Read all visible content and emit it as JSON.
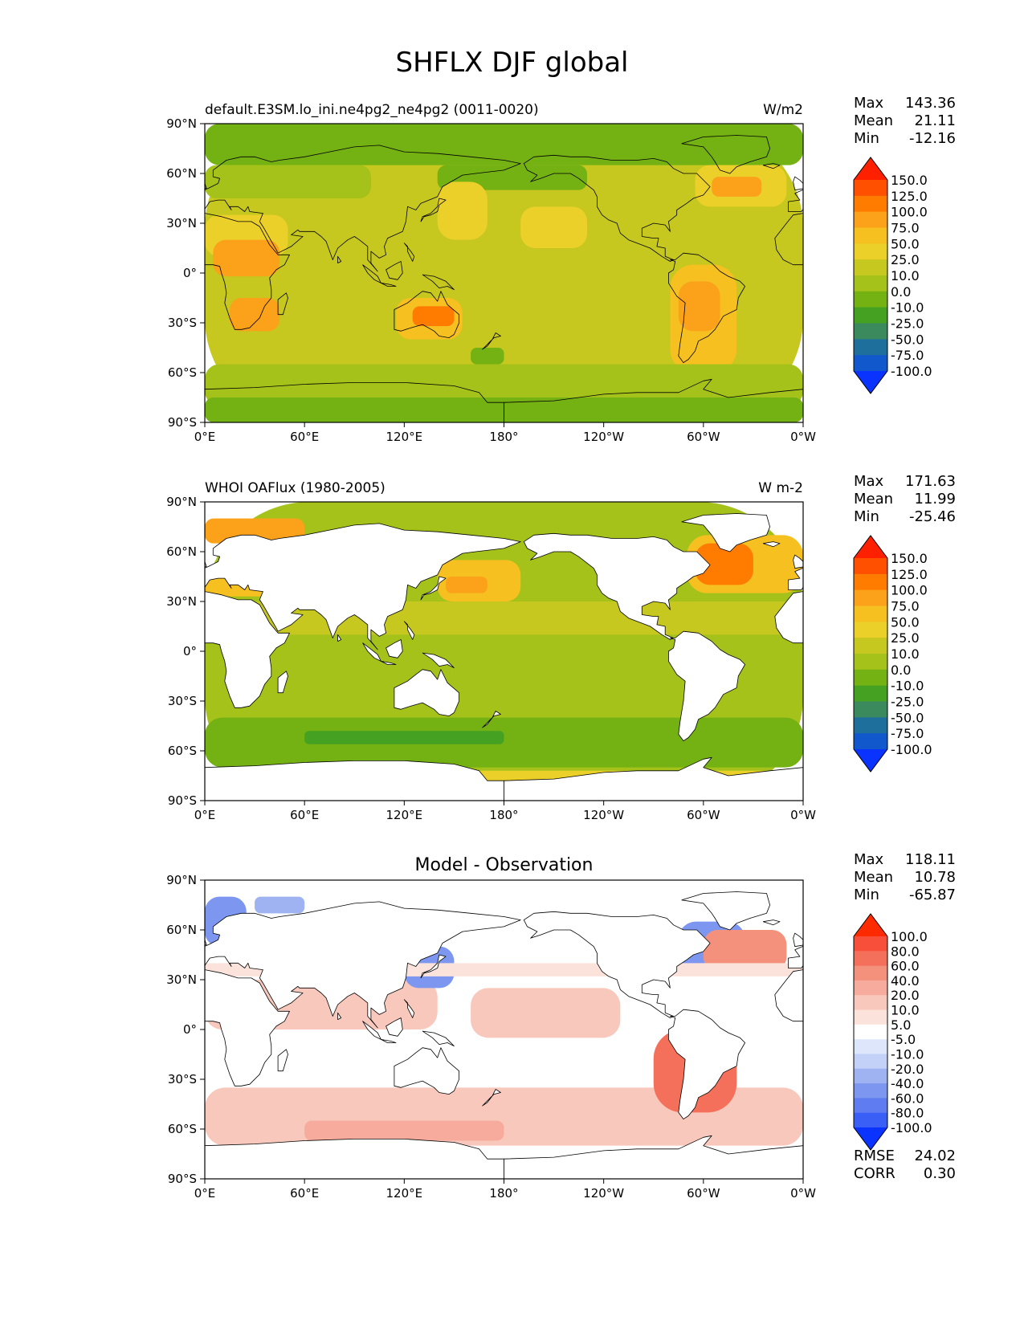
{
  "title": "SHFLX DJF global",
  "chart_data": [
    {
      "type": "heatmap",
      "subtitle_left": "default.E3SM.lo_ini.ne4pg2_ne4pg2 (0011-0020)",
      "subtitle_center": "",
      "units": "W/m2",
      "stats": [
        {
          "label": "Max",
          "value": "143.36"
        },
        {
          "label": "Mean",
          "value": "21.11"
        },
        {
          "label": "Min",
          "value": "-12.16"
        }
      ],
      "levels": [
        "150.0",
        "125.0",
        "100.0",
        "75.0",
        "50.0",
        "25.0",
        "10.0",
        "0.0",
        "-10.0",
        "-25.0",
        "-50.0",
        "-75.0",
        "-100.0"
      ],
      "colors": [
        "#ff2000",
        "#ff5000",
        "#ff7c00",
        "#fba21a",
        "#f5c020",
        "#ecd02a",
        "#c6c71f",
        "#a4c21a",
        "#74b113",
        "#45a122",
        "#3a8a5e",
        "#1f6f9c",
        "#1058cc",
        "#0a33ff"
      ],
      "x_ticks": [
        "0°E",
        "60°E",
        "120°E",
        "180°",
        "120°W",
        "60°W",
        "0°W"
      ],
      "y_ticks": [
        "90°N",
        "60°N",
        "30°N",
        "0°",
        "30°S",
        "60°S",
        "90°S"
      ],
      "xlim": [
        0,
        360
      ],
      "ylim": [
        -90,
        90
      ],
      "mask_land": false,
      "regions": [
        {
          "lon": 0,
          "lat": 90,
          "w": 360,
          "h": 180,
          "level": 6
        },
        {
          "lon": 0,
          "lat": 90,
          "w": 360,
          "h": 25,
          "level": 8
        },
        {
          "lon": 0,
          "lat": 65,
          "w": 100,
          "h": 20,
          "level": 7
        },
        {
          "lon": 140,
          "lat": 65,
          "w": 90,
          "h": 15,
          "level": 8
        },
        {
          "lon": 0,
          "lat": 35,
          "w": 50,
          "h": 25,
          "level": 5
        },
        {
          "lon": 5,
          "lat": 20,
          "w": 40,
          "h": 22,
          "level": 3
        },
        {
          "lon": 15,
          "lat": -15,
          "w": 30,
          "h": 20,
          "level": 3
        },
        {
          "lon": 140,
          "lat": 55,
          "w": 30,
          "h": 35,
          "level": 5
        },
        {
          "lon": 190,
          "lat": 40,
          "w": 40,
          "h": 25,
          "level": 5
        },
        {
          "lon": 295,
          "lat": 65,
          "w": 55,
          "h": 25,
          "level": 5
        },
        {
          "lon": 305,
          "lat": 58,
          "w": 30,
          "h": 12,
          "level": 3
        },
        {
          "lon": 280,
          "lat": 5,
          "w": 40,
          "h": 65,
          "level": 4
        },
        {
          "lon": 285,
          "lat": -5,
          "w": 25,
          "h": 30,
          "level": 3
        },
        {
          "lon": 115,
          "lat": -15,
          "w": 40,
          "h": 25,
          "level": 4
        },
        {
          "lon": 125,
          "lat": -20,
          "w": 25,
          "h": 12,
          "level": 2
        },
        {
          "lon": 0,
          "lat": -55,
          "w": 360,
          "h": 25,
          "level": 7
        },
        {
          "lon": 0,
          "lat": -75,
          "w": 360,
          "h": 15,
          "level": 8
        },
        {
          "lon": 160,
          "lat": -45,
          "w": 20,
          "h": 10,
          "level": 8
        }
      ]
    },
    {
      "type": "heatmap",
      "subtitle_left": "WHOI OAFlux (1980-2005)",
      "subtitle_center": "",
      "units": "W m-2",
      "stats": [
        {
          "label": "Max",
          "value": "171.63"
        },
        {
          "label": "Mean",
          "value": "11.99"
        },
        {
          "label": "Min",
          "value": "-25.46"
        }
      ],
      "levels": [
        "150.0",
        "125.0",
        "100.0",
        "75.0",
        "50.0",
        "25.0",
        "10.0",
        "0.0",
        "-10.0",
        "-25.0",
        "-50.0",
        "-75.0",
        "-100.0"
      ],
      "colors": [
        "#ff2000",
        "#ff5000",
        "#ff7c00",
        "#fba21a",
        "#f5c020",
        "#ecd02a",
        "#c6c71f",
        "#a4c21a",
        "#74b113",
        "#45a122",
        "#3a8a5e",
        "#1f6f9c",
        "#1058cc",
        "#0a33ff"
      ],
      "x_ticks": [
        "0°E",
        "60°E",
        "120°E",
        "180°",
        "120°W",
        "60°W",
        "0°W"
      ],
      "y_ticks": [
        "90°N",
        "60°N",
        "30°N",
        "0°",
        "30°S",
        "60°S",
        "90°S"
      ],
      "xlim": [
        0,
        360
      ],
      "ylim": [
        -90,
        90
      ],
      "mask_land": true,
      "regions": [
        {
          "lon": 0,
          "lat": 90,
          "w": 360,
          "h": 180,
          "level": 7
        },
        {
          "lon": 0,
          "lat": 30,
          "w": 360,
          "h": 20,
          "level": 6
        },
        {
          "lon": 0,
          "lat": 80,
          "w": 60,
          "h": 15,
          "level": 3
        },
        {
          "lon": 0,
          "lat": 45,
          "w": 40,
          "h": 12,
          "level": 4
        },
        {
          "lon": 140,
          "lat": 55,
          "w": 50,
          "h": 25,
          "level": 4
        },
        {
          "lon": 145,
          "lat": 45,
          "w": 25,
          "h": 10,
          "level": 3
        },
        {
          "lon": 290,
          "lat": 70,
          "w": 70,
          "h": 35,
          "level": 4
        },
        {
          "lon": 295,
          "lat": 65,
          "w": 35,
          "h": 25,
          "level": 2
        },
        {
          "lon": 0,
          "lat": -40,
          "w": 360,
          "h": 30,
          "level": 8
        },
        {
          "lon": 60,
          "lat": -48,
          "w": 120,
          "h": 8,
          "level": 9
        },
        {
          "lon": 0,
          "lat": -72,
          "w": 360,
          "h": 6,
          "level": 5
        }
      ]
    },
    {
      "type": "heatmap",
      "subtitle_left": "",
      "subtitle_center": "Model - Observation",
      "units": "",
      "stats": [
        {
          "label": "Max",
          "value": "118.11"
        },
        {
          "label": "Mean",
          "value": "10.78"
        },
        {
          "label": "Min",
          "value": "-65.87"
        }
      ],
      "levels": [
        "100.0",
        "80.0",
        "60.0",
        "40.0",
        "20.0",
        "10.0",
        "5.0",
        "-5.0",
        "-10.0",
        "-20.0",
        "-40.0",
        "-60.0",
        "-80.0",
        "-100.0"
      ],
      "colors": [
        "#ff2a00",
        "#f84f3a",
        "#f5705a",
        "#f4917c",
        "#f6ab9c",
        "#f8c8bc",
        "#fbe3dc",
        "#ffffff",
        "#dde6fb",
        "#c3d0f8",
        "#9fb3f3",
        "#7d97f0",
        "#5f7df1",
        "#3a5ff6",
        "#0a33ff"
      ],
      "x_ticks": [
        "0°E",
        "60°E",
        "120°E",
        "180°",
        "120°W",
        "60°W",
        "0°W"
      ],
      "y_ticks": [
        "90°N",
        "60°N",
        "30°N",
        "0°",
        "30°S",
        "60°S",
        "90°S"
      ],
      "xlim": [
        0,
        360
      ],
      "ylim": [
        -90,
        90
      ],
      "mask_land": true,
      "regions": [
        {
          "lon": 0,
          "lat": 90,
          "w": 360,
          "h": 180,
          "level": 7
        },
        {
          "lon": 0,
          "lat": 30,
          "w": 140,
          "h": 30,
          "level": 5
        },
        {
          "lon": 160,
          "lat": 25,
          "w": 90,
          "h": 30,
          "level": 5
        },
        {
          "lon": 0,
          "lat": -35,
          "w": 360,
          "h": 35,
          "level": 5
        },
        {
          "lon": 60,
          "lat": -55,
          "w": 120,
          "h": 12,
          "level": 4
        },
        {
          "lon": 0,
          "lat": 80,
          "w": 25,
          "h": 30,
          "level": 11
        },
        {
          "lon": 30,
          "lat": 80,
          "w": 30,
          "h": 10,
          "level": 10
        },
        {
          "lon": 120,
          "lat": 50,
          "w": 30,
          "h": 25,
          "level": 11
        },
        {
          "lon": 285,
          "lat": 65,
          "w": 40,
          "h": 30,
          "level": 11
        },
        {
          "lon": 300,
          "lat": 60,
          "w": 50,
          "h": 25,
          "level": 3
        },
        {
          "lon": 270,
          "lat": 0,
          "w": 50,
          "h": 50,
          "level": 2
        },
        {
          "lon": 0,
          "lat": 40,
          "w": 360,
          "h": 8,
          "level": 6
        }
      ]
    }
  ],
  "error_stats": [
    {
      "label": "RMSE",
      "value": "24.02"
    },
    {
      "label": "CORR",
      "value": "0.30"
    }
  ]
}
